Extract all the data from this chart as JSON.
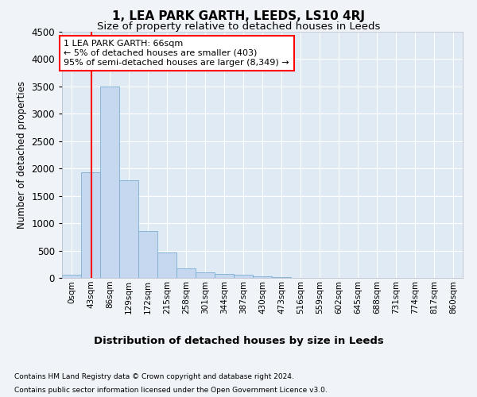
{
  "title1": "1, LEA PARK GARTH, LEEDS, LS10 4RJ",
  "title2": "Size of property relative to detached houses in Leeds",
  "xlabel": "Distribution of detached houses by size in Leeds",
  "ylabel": "Number of detached properties",
  "bin_labels": [
    "0sqm",
    "43sqm",
    "86sqm",
    "129sqm",
    "172sqm",
    "215sqm",
    "258sqm",
    "301sqm",
    "344sqm",
    "387sqm",
    "430sqm",
    "473sqm",
    "516sqm",
    "559sqm",
    "602sqm",
    "645sqm",
    "688sqm",
    "731sqm",
    "774sqm",
    "817sqm",
    "860sqm"
  ],
  "bar_heights": [
    55,
    1930,
    3500,
    1780,
    860,
    460,
    175,
    105,
    70,
    55,
    30,
    10,
    5,
    3,
    2,
    1,
    1,
    0,
    0,
    0,
    0
  ],
  "bar_color": "#c5d8f0",
  "bar_edge_color": "#7aafd4",
  "red_line_x": 1.53,
  "annotation_text": "1 LEA PARK GARTH: 66sqm\n← 5% of detached houses are smaller (403)\n95% of semi-detached houses are larger (8,349) →",
  "ylim": [
    0,
    4500
  ],
  "yticks": [
    0,
    500,
    1000,
    1500,
    2000,
    2500,
    3000,
    3500,
    4000,
    4500
  ],
  "footer_line1": "Contains HM Land Registry data © Crown copyright and database right 2024.",
  "footer_line2": "Contains public sector information licensed under the Open Government Licence v3.0.",
  "bg_color": "#f0f4f8",
  "plot_bg_color": "#e0eaf4"
}
